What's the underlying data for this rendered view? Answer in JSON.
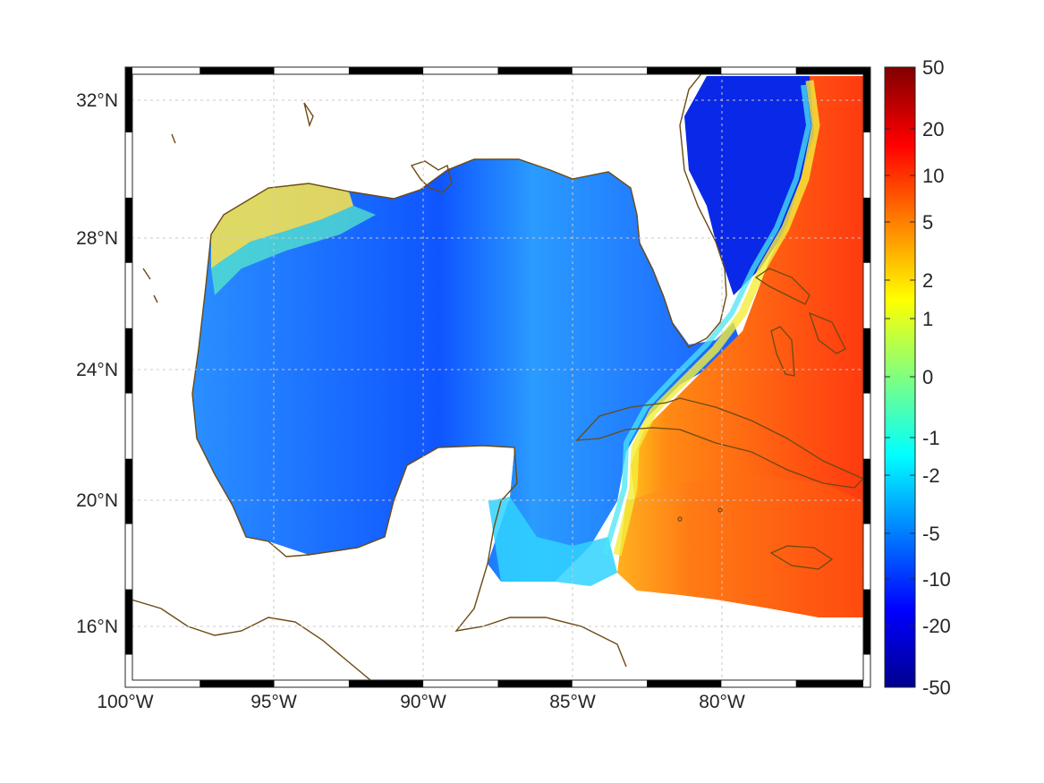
{
  "map": {
    "lon_labels": [
      "100°W",
      "95°W",
      "90°W",
      "85°W",
      "80°W"
    ],
    "lat_labels": [
      "32°N",
      "28°N",
      "24°N",
      "20°N",
      "16°N"
    ],
    "colorbar_labels": [
      "50",
      "20",
      "10",
      "5",
      "2",
      "1",
      "0",
      "-1",
      "-2",
      "-5",
      "-10",
      "-20",
      "-50"
    ],
    "colors": {
      "coastline": "#6b4a12",
      "grid": "#c8c8c8",
      "colormap": "jet",
      "land": "#ffffff"
    }
  }
}
